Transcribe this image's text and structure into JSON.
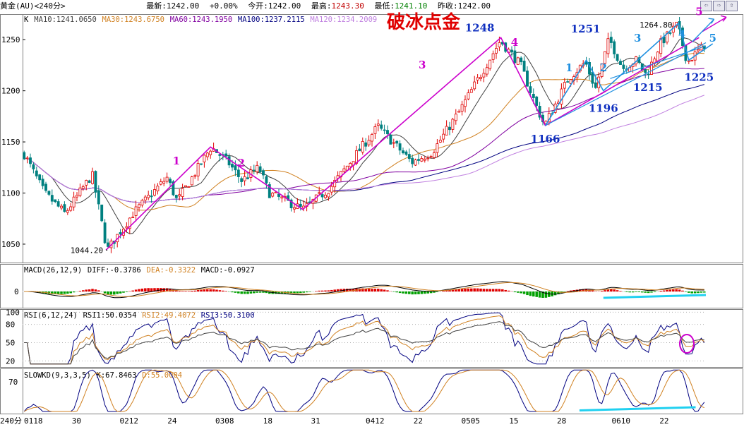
{
  "header": {
    "symbol": "黄金(AU)<240分>",
    "latest_label": "最新:1242.00",
    "change_label": "+0.00%",
    "open_label": "今开:1242.00",
    "high_label_text": "最高:",
    "high_value": "1243.30",
    "low_label_text": "最低:",
    "low_value": "1241.10",
    "prev_close_label": "昨收:1242.00",
    "nav_buttons": [
      "⇦",
      "⇨",
      "⇧"
    ]
  },
  "watermark": "破冰点金",
  "period_label": "240分",
  "colors": {
    "up": "#e00000",
    "down": "#008080",
    "magenta": "#cc00cc",
    "blue": "#1030c0",
    "ma10": "#404040",
    "ma30": "#d08020",
    "ma60": "#8000a0",
    "ma100": "#000080",
    "ma120": "#c080e0",
    "cyan": "#20d0f0"
  },
  "chart_data": [
    {
      "type": "candlestick",
      "panel": "price",
      "legend": [
        {
          "text": "K",
          "color": "#000000"
        },
        {
          "text": "MA10:1241.0650",
          "color": "#404040"
        },
        {
          "text": "MA30:1243.6750",
          "color": "#d08020"
        },
        {
          "text": "MA60:1243.1950",
          "color": "#8000a0"
        },
        {
          "text": "MA100:1237.2115",
          "color": "#000080"
        },
        {
          "text": "MA120:1234.2009",
          "color": "#c080e0"
        }
      ],
      "ylim": [
        1032,
        1275
      ],
      "y_ticks": [
        1050,
        1100,
        1150,
        1200,
        1250
      ],
      "x_labels": [
        "0118",
        "30",
        "0212",
        "24",
        "0308",
        "18",
        "31",
        "0412",
        "22",
        "0505",
        "15",
        "28",
        "0610",
        "22"
      ],
      "x_label_pos": [
        0,
        0.07,
        0.14,
        0.21,
        0.28,
        0.35,
        0.42,
        0.5,
        0.57,
        0.64,
        0.71,
        0.78,
        0.86,
        0.93
      ],
      "anchors": [
        [
          0.0,
          1138
        ],
        [
          0.03,
          1100
        ],
        [
          0.06,
          1080
        ],
        [
          0.1,
          1118
        ],
        [
          0.122,
          1044.2
        ],
        [
          0.16,
          1080
        ],
        [
          0.21,
          1115
        ],
        [
          0.225,
          1092
        ],
        [
          0.275,
          1145
        ],
        [
          0.3,
          1130
        ],
        [
          0.32,
          1112
        ],
        [
          0.345,
          1125
        ],
        [
          0.36,
          1100
        ],
        [
          0.41,
          1084
        ],
        [
          0.45,
          1105
        ],
        [
          0.5,
          1148
        ],
        [
          0.52,
          1165
        ],
        [
          0.57,
          1130
        ],
        [
          0.6,
          1140
        ],
        [
          0.64,
          1180
        ],
        [
          0.7,
          1249
        ],
        [
          0.73,
          1225
        ],
        [
          0.75,
          1190
        ],
        [
          0.765,
          1166
        ],
        [
          0.8,
          1212
        ],
        [
          0.825,
          1228
        ],
        [
          0.84,
          1202
        ],
        [
          0.86,
          1251
        ],
        [
          0.88,
          1222
        ],
        [
          0.9,
          1230
        ],
        [
          0.915,
          1215
        ],
        [
          0.935,
          1246
        ],
        [
          0.96,
          1264.8
        ],
        [
          0.975,
          1228
        ],
        [
          1.0,
          1245
        ]
      ],
      "annotations": [
        {
          "text": "1044.20",
          "x": 0.122,
          "y": 1044.2,
          "color": "#000000"
        },
        {
          "text": "1248",
          "x": 0.7,
          "y": 1258,
          "color": "#1030c0"
        },
        {
          "text": "1251",
          "x": 0.855,
          "y": 1257,
          "color": "#1030c0"
        },
        {
          "text": "1264.80",
          "x": 0.955,
          "y": 1264.8,
          "color": "#000000"
        },
        {
          "text": "1166",
          "x": 0.765,
          "y": 1166,
          "color": "#1030c0"
        },
        {
          "text": "1196",
          "x": 0.85,
          "y": 1196,
          "color": "#1030c0"
        },
        {
          "text": "1215",
          "x": 0.915,
          "y": 1215,
          "color": "#1030c0"
        },
        {
          "text": "1225",
          "x": 0.99,
          "y": 1225,
          "color": "#1030c0"
        },
        {
          "text": "1",
          "x": 0.225,
          "y": 1128,
          "color": "#cc00cc"
        },
        {
          "text": "2",
          "x": 0.32,
          "y": 1126,
          "color": "#cc00cc"
        },
        {
          "text": "3",
          "x": 0.585,
          "y": 1222,
          "color": "#cc00cc"
        },
        {
          "text": "4",
          "x": 0.72,
          "y": 1244,
          "color": "#cc00cc"
        },
        {
          "text": "5",
          "x": 0.99,
          "y": 1274,
          "color": "#cc00cc"
        },
        {
          "text": "1",
          "x": 0.8,
          "y": 1219,
          "color": "#2090e0"
        },
        {
          "text": "2",
          "x": 0.85,
          "y": 1219,
          "color": "#2090e0"
        },
        {
          "text": "3",
          "x": 0.9,
          "y": 1248,
          "color": "#2090e0"
        },
        {
          "text": "4",
          "x": 0.965,
          "y": 1252,
          "color": "#2090e0"
        },
        {
          "text": "5",
          "x": 1.01,
          "y": 1248,
          "color": "#2090e0"
        }
      ],
      "wave_primary": [
        [
          0.122,
          1044.2
        ],
        [
          0.275,
          1145
        ],
        [
          0.41,
          1084
        ],
        [
          0.7,
          1252
        ],
        [
          0.765,
          1166
        ],
        [
          0.99,
          1252
        ]
      ],
      "wave_secondary": [
        [
          0.765,
          1166
        ],
        [
          0.825,
          1230
        ],
        [
          0.85,
          1200
        ],
        [
          0.96,
          1266
        ],
        [
          0.975,
          1230
        ],
        [
          1.01,
          1246
        ]
      ]
    },
    {
      "type": "macd",
      "panel": "macd",
      "legend": [
        {
          "text": "MACD(26,12,9)",
          "color": "#000000"
        },
        {
          "text": "DIFF:-0.3786",
          "color": "#000000"
        },
        {
          "text": "DEA:-0.3322",
          "color": "#d08020"
        },
        {
          "text": "MACD:-0.0927",
          "color": "#000000"
        }
      ],
      "y_ticks": [
        0
      ]
    },
    {
      "type": "rsi",
      "panel": "rsi",
      "legend": [
        {
          "text": "RSI(6,12,24)",
          "color": "#000000"
        },
        {
          "text": "RSI1:50.0354",
          "color": "#000000"
        },
        {
          "text": "RSI2:49.4072",
          "color": "#d08020"
        },
        {
          "text": "RSI3:50.3100",
          "color": "#000080"
        }
      ],
      "ylim": [
        10,
        105
      ],
      "y_ticks": [
        20,
        50,
        80,
        100
      ]
    },
    {
      "type": "kd",
      "panel": "kd",
      "legend": [
        {
          "text": "SLOWKD(9,3,3,5)",
          "color": "#000000"
        },
        {
          "text": "K:67.8463",
          "color": "#000000"
        },
        {
          "text": "D:55.0004",
          "color": "#d08020"
        }
      ],
      "ylim": [
        10,
        95
      ],
      "y_ticks": [
        70
      ]
    }
  ]
}
